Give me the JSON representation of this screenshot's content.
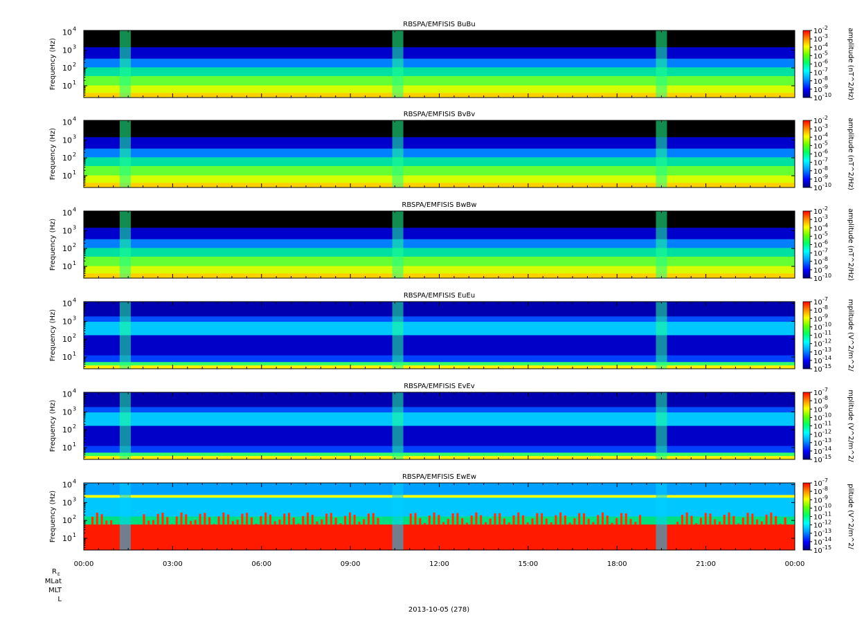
{
  "chart_data": [
    {
      "type": "heatmap",
      "title": "RBSPA/EMFISIS  BuBu",
      "ylabel": "Frequency (Hz)",
      "y_scale": "log",
      "y_ticks": [
        {
          "value": 10,
          "label": "10",
          "exp": "1"
        },
        {
          "value": 100,
          "label": "10",
          "exp": "2"
        },
        {
          "value": 1000,
          "label": "10",
          "exp": "3"
        },
        {
          "value": 10000,
          "label": "10",
          "exp": "4"
        }
      ],
      "colorbar": {
        "label": "amplitude (nT^2/Hz)",
        "scale": "log",
        "range": [
          1e-10,
          0.01
        ],
        "ticks": [
          {
            "value": 0.01,
            "label": "10",
            "exp": "-2"
          },
          {
            "value": 0.001,
            "label": "10",
            "exp": "-3"
          },
          {
            "value": 0.0001,
            "label": "10",
            "exp": "-4"
          },
          {
            "value": 1e-05,
            "label": "10",
            "exp": "-5"
          },
          {
            "value": 1e-06,
            "label": "10",
            "exp": "-6"
          },
          {
            "value": 1e-07,
            "label": "10",
            "exp": "-7"
          },
          {
            "value": 1e-08,
            "label": "10",
            "exp": "-8"
          },
          {
            "value": 1e-09,
            "label": "10",
            "exp": "-9"
          },
          {
            "value": 1e-10,
            "label": "10",
            "exp": "-10"
          }
        ]
      }
    },
    {
      "type": "heatmap",
      "title": "RBSPA/EMFISIS  BvBv",
      "ylabel": "Frequency (Hz)",
      "y_scale": "log",
      "y_ticks": [
        {
          "value": 10,
          "label": "10",
          "exp": "1"
        },
        {
          "value": 100,
          "label": "10",
          "exp": "2"
        },
        {
          "value": 1000,
          "label": "10",
          "exp": "3"
        },
        {
          "value": 10000,
          "label": "10",
          "exp": "4"
        }
      ],
      "colorbar": {
        "label": "amplitude (nT^2/Hz)",
        "scale": "log",
        "range": [
          1e-10,
          0.01
        ],
        "ticks": [
          {
            "value": 0.01,
            "label": "10",
            "exp": "-2"
          },
          {
            "value": 0.001,
            "label": "10",
            "exp": "-3"
          },
          {
            "value": 0.0001,
            "label": "10",
            "exp": "-4"
          },
          {
            "value": 1e-05,
            "label": "10",
            "exp": "-5"
          },
          {
            "value": 1e-06,
            "label": "10",
            "exp": "-6"
          },
          {
            "value": 1e-07,
            "label": "10",
            "exp": "-7"
          },
          {
            "value": 1e-08,
            "label": "10",
            "exp": "-8"
          },
          {
            "value": 1e-09,
            "label": "10",
            "exp": "-9"
          },
          {
            "value": 1e-10,
            "label": "10",
            "exp": "-10"
          }
        ]
      }
    },
    {
      "type": "heatmap",
      "title": "RBSPA/EMFISIS  BwBw",
      "ylabel": "Frequency (Hz)",
      "y_scale": "log",
      "y_ticks": [
        {
          "value": 10,
          "label": "10",
          "exp": "1"
        },
        {
          "value": 100,
          "label": "10",
          "exp": "2"
        },
        {
          "value": 1000,
          "label": "10",
          "exp": "3"
        },
        {
          "value": 10000,
          "label": "10",
          "exp": "4"
        }
      ],
      "colorbar": {
        "label": "amplitude (nT^2/Hz)",
        "scale": "log",
        "range": [
          1e-10,
          0.01
        ],
        "ticks": [
          {
            "value": 0.01,
            "label": "10",
            "exp": "-2"
          },
          {
            "value": 0.001,
            "label": "10",
            "exp": "-3"
          },
          {
            "value": 0.0001,
            "label": "10",
            "exp": "-4"
          },
          {
            "value": 1e-05,
            "label": "10",
            "exp": "-5"
          },
          {
            "value": 1e-06,
            "label": "10",
            "exp": "-6"
          },
          {
            "value": 1e-07,
            "label": "10",
            "exp": "-7"
          },
          {
            "value": 1e-08,
            "label": "10",
            "exp": "-8"
          },
          {
            "value": 1e-09,
            "label": "10",
            "exp": "-9"
          },
          {
            "value": 1e-10,
            "label": "10",
            "exp": "-10"
          }
        ]
      }
    },
    {
      "type": "heatmap",
      "title": "RBSPA/EMFISIS  EuEu",
      "ylabel": "Frequency (Hz)",
      "y_scale": "log",
      "y_ticks": [
        {
          "value": 10,
          "label": "10",
          "exp": "1"
        },
        {
          "value": 100,
          "label": "10",
          "exp": "2"
        },
        {
          "value": 1000,
          "label": "10",
          "exp": "3"
        },
        {
          "value": 10000,
          "label": "10",
          "exp": "4"
        }
      ],
      "colorbar": {
        "label": "mplitude (V^2/m^2/",
        "scale": "log",
        "range": [
          1e-15,
          1e-07
        ],
        "ticks": [
          {
            "value": 1e-07,
            "label": "10",
            "exp": "-7"
          },
          {
            "value": 1e-08,
            "label": "10",
            "exp": "-8"
          },
          {
            "value": 1e-09,
            "label": "10",
            "exp": "-9"
          },
          {
            "value": 1e-10,
            "label": "10",
            "exp": "-10"
          },
          {
            "value": 1e-11,
            "label": "10",
            "exp": "-11"
          },
          {
            "value": 1e-12,
            "label": "10",
            "exp": "-12"
          },
          {
            "value": 1e-13,
            "label": "10",
            "exp": "-13"
          },
          {
            "value": 1e-14,
            "label": "10",
            "exp": "-14"
          },
          {
            "value": 1e-15,
            "label": "10",
            "exp": "-15"
          }
        ]
      }
    },
    {
      "type": "heatmap",
      "title": "RBSPA/EMFISIS  EvEv",
      "ylabel": "Frequency (Hz)",
      "y_scale": "log",
      "y_ticks": [
        {
          "value": 10,
          "label": "10",
          "exp": "1"
        },
        {
          "value": 100,
          "label": "10",
          "exp": "2"
        },
        {
          "value": 1000,
          "label": "10",
          "exp": "3"
        },
        {
          "value": 10000,
          "label": "10",
          "exp": "4"
        }
      ],
      "colorbar": {
        "label": "mplitude (V^2/m^2/",
        "scale": "log",
        "range": [
          1e-15,
          1e-07
        ],
        "ticks": [
          {
            "value": 1e-07,
            "label": "10",
            "exp": "-7"
          },
          {
            "value": 1e-08,
            "label": "10",
            "exp": "-8"
          },
          {
            "value": 1e-09,
            "label": "10",
            "exp": "-9"
          },
          {
            "value": 1e-10,
            "label": "10",
            "exp": "-10"
          },
          {
            "value": 1e-11,
            "label": "10",
            "exp": "-11"
          },
          {
            "value": 1e-12,
            "label": "10",
            "exp": "-12"
          },
          {
            "value": 1e-13,
            "label": "10",
            "exp": "-13"
          },
          {
            "value": 1e-14,
            "label": "10",
            "exp": "-14"
          },
          {
            "value": 1e-15,
            "label": "10",
            "exp": "-15"
          }
        ]
      }
    },
    {
      "type": "heatmap",
      "title": "RBSPA/EMFISIS  EwEw",
      "ylabel": "Frequency (Hz)",
      "y_scale": "log",
      "y_ticks": [
        {
          "value": 10,
          "label": "10",
          "exp": "1"
        },
        {
          "value": 100,
          "label": "10",
          "exp": "2"
        },
        {
          "value": 1000,
          "label": "10",
          "exp": "3"
        },
        {
          "value": 10000,
          "label": "10",
          "exp": "4"
        }
      ],
      "colorbar": {
        "label": "plitude (V^2/m^2/",
        "scale": "log",
        "range": [
          1e-15,
          1e-07
        ],
        "ticks": [
          {
            "value": 1e-07,
            "label": "10",
            "exp": "-7"
          },
          {
            "value": 1e-08,
            "label": "10",
            "exp": "-8"
          },
          {
            "value": 1e-09,
            "label": "10",
            "exp": "-9"
          },
          {
            "value": 1e-10,
            "label": "10",
            "exp": "-10"
          },
          {
            "value": 1e-11,
            "label": "10",
            "exp": "-11"
          },
          {
            "value": 1e-12,
            "label": "10",
            "exp": "-12"
          },
          {
            "value": 1e-13,
            "label": "10",
            "exp": "-13"
          },
          {
            "value": 1e-14,
            "label": "10",
            "exp": "-14"
          },
          {
            "value": 1e-15,
            "label": "10",
            "exp": "-15"
          }
        ]
      }
    }
  ],
  "x_axis": {
    "ticks": [
      "00:00",
      "03:00",
      "06:00",
      "09:00",
      "12:00",
      "15:00",
      "18:00",
      "21:00",
      "00:00"
    ],
    "range_hours": [
      0,
      24
    ],
    "ephemeris_labels": [
      {
        "label": "R",
        "sub": "E"
      },
      {
        "label": "MLat",
        "sub": ""
      },
      {
        "label": "MLT",
        "sub": ""
      },
      {
        "label": "L",
        "sub": ""
      }
    ],
    "date_label": "2013-10-05 (278)"
  },
  "colors": {
    "colormap": [
      "#00007a",
      "#0000ff",
      "#00a0ff",
      "#00ffff",
      "#00ff66",
      "#66ff00",
      "#ffff00",
      "#ff8800",
      "#ff0000"
    ],
    "background_low": "#000000"
  }
}
